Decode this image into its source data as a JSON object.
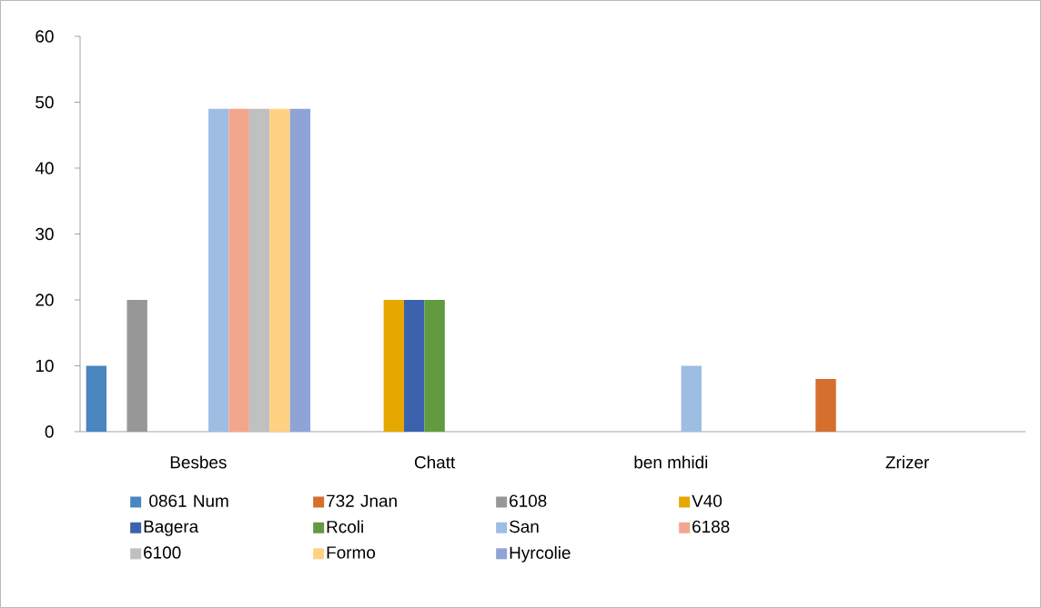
{
  "chart_data": {
    "type": "bar",
    "categories": [
      "Besbes",
      "Chatt",
      "ben mhidi",
      "Zrizer"
    ],
    "ylim": [
      0,
      60
    ],
    "yticks": [
      0,
      10,
      20,
      30,
      40,
      50,
      60
    ],
    "legend": "bottom",
    "series": [
      {
        "name": " 0861 Num",
        "color": "#4a86c0",
        "values": [
          10,
          null,
          null,
          null
        ]
      },
      {
        "name": "732 Jnan",
        "color": "#d46f2e",
        "values": [
          null,
          null,
          null,
          8
        ]
      },
      {
        "name": "6108",
        "color": "#979797",
        "values": [
          20,
          null,
          null,
          null
        ]
      },
      {
        "name": "V40",
        "color": "#e6a800",
        "values": [
          null,
          20,
          null,
          null
        ]
      },
      {
        "name": "Bagera",
        "color": "#3b63ad",
        "values": [
          null,
          20,
          null,
          null
        ]
      },
      {
        "name": "Rcoli",
        "color": "#629a3f",
        "values": [
          null,
          20,
          null,
          null
        ]
      },
      {
        "name": "San",
        "color": "#9dbde3",
        "values": [
          49,
          null,
          10,
          null
        ]
      },
      {
        "name": "6188",
        "color": "#f2a68c",
        "values": [
          49,
          null,
          null,
          null
        ]
      },
      {
        "name": "6100",
        "color": "#c0c0c0",
        "values": [
          49,
          null,
          null,
          null
        ]
      },
      {
        "name": "Formo",
        "color": "#ffd283",
        "values": [
          49,
          null,
          null,
          null
        ]
      },
      {
        "name": "Hyrcolie",
        "color": "#8fa3d6",
        "values": [
          49,
          null,
          null,
          null
        ]
      }
    ]
  }
}
